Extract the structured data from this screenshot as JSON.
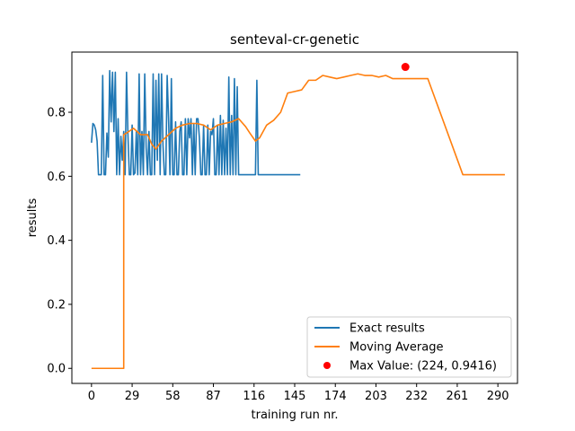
{
  "chart_data": {
    "type": "line",
    "title": "senteval-cr-genetic",
    "xlabel": "training run nr.",
    "ylabel": "results",
    "xlim": [
      -14,
      304
    ],
    "ylim": [
      -0.047,
      0.988
    ],
    "xticks": [
      0,
      29,
      58,
      87,
      116,
      145,
      174,
      203,
      232,
      261,
      290
    ],
    "yticks": [
      0.0,
      0.2,
      0.4,
      0.6,
      0.8
    ],
    "ytick_labels": [
      "0.0",
      "0.2",
      "0.4",
      "0.6",
      "0.8"
    ],
    "grid": false,
    "legend_position": "lower-right",
    "series": [
      {
        "name": "Exact results",
        "color": "#1f77b4",
        "points": [
          [
            0,
            0.705
          ],
          [
            1,
            0.765
          ],
          [
            2,
            0.76
          ],
          [
            3,
            0.745
          ],
          [
            4,
            0.71
          ],
          [
            5,
            0.605
          ],
          [
            6,
            0.605
          ],
          [
            7,
            0.605
          ],
          [
            8,
            0.915
          ],
          [
            9,
            0.605
          ],
          [
            10,
            0.605
          ],
          [
            11,
            0.735
          ],
          [
            12,
            0.66
          ],
          [
            13,
            0.93
          ],
          [
            14,
            0.77
          ],
          [
            15,
            0.925
          ],
          [
            16,
            0.74
          ],
          [
            17,
            0.925
          ],
          [
            18,
            0.605
          ],
          [
            19,
            0.78
          ],
          [
            20,
            0.605
          ],
          [
            21,
            0.725
          ],
          [
            22,
            0.65
          ],
          [
            23,
            0.74
          ],
          [
            24,
            0.605
          ],
          [
            25,
            0.925
          ],
          [
            26,
            0.73
          ],
          [
            27,
            0.605
          ],
          [
            28,
            0.605
          ],
          [
            29,
            0.76
          ],
          [
            30,
            0.605
          ],
          [
            31,
            0.61
          ],
          [
            32,
            0.74
          ],
          [
            33,
            0.605
          ],
          [
            34,
            0.92
          ],
          [
            35,
            0.605
          ],
          [
            36,
            0.74
          ],
          [
            37,
            0.605
          ],
          [
            38,
            0.92
          ],
          [
            39,
            0.69
          ],
          [
            40,
            0.605
          ],
          [
            41,
            0.74
          ],
          [
            42,
            0.605
          ],
          [
            43,
            0.605
          ],
          [
            44,
            0.92
          ],
          [
            45,
            0.605
          ],
          [
            46,
            0.9
          ],
          [
            47,
            0.65
          ],
          [
            48,
            0.92
          ],
          [
            49,
            0.605
          ],
          [
            50,
            0.92
          ],
          [
            51,
            0.7
          ],
          [
            52,
            0.605
          ],
          [
            53,
            0.605
          ],
          [
            54,
            0.915
          ],
          [
            55,
            0.78
          ],
          [
            56,
            0.605
          ],
          [
            57,
            0.905
          ],
          [
            58,
            0.605
          ],
          [
            59,
            0.605
          ],
          [
            60,
            0.77
          ],
          [
            61,
            0.605
          ],
          [
            62,
            0.605
          ],
          [
            63,
            0.74
          ],
          [
            64,
            0.77
          ],
          [
            65,
            0.605
          ],
          [
            66,
            0.605
          ],
          [
            67,
            0.78
          ],
          [
            68,
            0.605
          ],
          [
            69,
            0.78
          ],
          [
            70,
            0.72
          ],
          [
            71,
            0.78
          ],
          [
            72,
            0.605
          ],
          [
            73,
            0.765
          ],
          [
            74,
            0.605
          ],
          [
            75,
            0.78
          ],
          [
            76,
            0.78
          ],
          [
            77,
            0.72
          ],
          [
            78,
            0.605
          ],
          [
            79,
            0.605
          ],
          [
            80,
            0.76
          ],
          [
            81,
            0.605
          ],
          [
            82,
            0.605
          ],
          [
            83,
            0.76
          ],
          [
            84,
            0.605
          ],
          [
            85,
            0.74
          ],
          [
            86,
            0.73
          ],
          [
            87,
            0.78
          ],
          [
            88,
            0.605
          ],
          [
            89,
            0.605
          ],
          [
            90,
            0.76
          ],
          [
            91,
            0.605
          ],
          [
            92,
            0.79
          ],
          [
            93,
            0.605
          ],
          [
            94,
            0.775
          ],
          [
            95,
            0.605
          ],
          [
            96,
            0.75
          ],
          [
            97,
            0.605
          ],
          [
            98,
            0.91
          ],
          [
            99,
            0.605
          ],
          [
            100,
            0.79
          ],
          [
            101,
            0.605
          ],
          [
            102,
            0.905
          ],
          [
            103,
            0.605
          ],
          [
            104,
            0.88
          ],
          [
            105,
            0.605
          ],
          [
            106,
            0.605
          ],
          [
            107,
            0.605
          ],
          [
            108,
            0.605
          ],
          [
            109,
            0.605
          ],
          [
            110,
            0.605
          ],
          [
            111,
            0.605
          ],
          [
            112,
            0.605
          ],
          [
            113,
            0.605
          ],
          [
            114,
            0.605
          ],
          [
            115,
            0.605
          ],
          [
            116,
            0.605
          ],
          [
            117,
            0.605
          ],
          [
            118,
            0.9
          ],
          [
            119,
            0.605
          ],
          [
            120,
            0.605
          ],
          [
            121,
            0.605
          ],
          [
            122,
            0.605
          ],
          [
            123,
            0.605
          ],
          [
            124,
            0.605
          ],
          [
            125,
            0.605
          ],
          [
            126,
            0.605
          ],
          [
            127,
            0.605
          ],
          [
            128,
            0.605
          ],
          [
            129,
            0.605
          ],
          [
            130,
            0.605
          ],
          [
            131,
            0.605
          ],
          [
            132,
            0.605
          ],
          [
            133,
            0.605
          ],
          [
            134,
            0.605
          ],
          [
            135,
            0.605
          ],
          [
            136,
            0.605
          ],
          [
            137,
            0.605
          ],
          [
            138,
            0.605
          ],
          [
            139,
            0.605
          ],
          [
            140,
            0.605
          ],
          [
            141,
            0.605
          ],
          [
            142,
            0.605
          ],
          [
            143,
            0.605
          ],
          [
            144,
            0.605
          ],
          [
            145,
            0.605
          ],
          [
            146,
            0.605
          ],
          [
            147,
            0.605
          ],
          [
            148,
            0.605
          ],
          [
            149,
            0.605
          ]
        ]
      },
      {
        "name": "Moving Average",
        "color": "#ff7f0e",
        "points": [
          [
            0,
            0.0
          ],
          [
            23,
            0.0
          ],
          [
            23,
            0.73
          ],
          [
            25,
            0.735
          ],
          [
            30,
            0.75
          ],
          [
            35,
            0.73
          ],
          [
            40,
            0.73
          ],
          [
            43,
            0.7
          ],
          [
            46,
            0.685
          ],
          [
            50,
            0.71
          ],
          [
            55,
            0.73
          ],
          [
            60,
            0.75
          ],
          [
            65,
            0.76
          ],
          [
            70,
            0.765
          ],
          [
            75,
            0.765
          ],
          [
            80,
            0.76
          ],
          [
            85,
            0.745
          ],
          [
            90,
            0.76
          ],
          [
            95,
            0.765
          ],
          [
            100,
            0.77
          ],
          [
            105,
            0.78
          ],
          [
            110,
            0.755
          ],
          [
            113,
            0.735
          ],
          [
            117,
            0.71
          ],
          [
            120,
            0.72
          ],
          [
            125,
            0.76
          ],
          [
            130,
            0.775
          ],
          [
            135,
            0.8
          ],
          [
            140,
            0.86
          ],
          [
            145,
            0.865
          ],
          [
            150,
            0.87
          ],
          [
            155,
            0.9
          ],
          [
            160,
            0.9
          ],
          [
            165,
            0.915
          ],
          [
            170,
            0.91
          ],
          [
            175,
            0.905
          ],
          [
            180,
            0.91
          ],
          [
            185,
            0.915
          ],
          [
            190,
            0.92
          ],
          [
            195,
            0.915
          ],
          [
            200,
            0.915
          ],
          [
            205,
            0.91
          ],
          [
            210,
            0.915
          ],
          [
            215,
            0.905
          ],
          [
            220,
            0.905
          ],
          [
            225,
            0.905
          ],
          [
            230,
            0.905
          ],
          [
            235,
            0.905
          ],
          [
            240,
            0.905
          ],
          [
            265,
            0.605
          ],
          [
            295,
            0.605
          ]
        ]
      }
    ],
    "max_point": {
      "label": "Max Value: (224, 0.9416)",
      "x": 224,
      "y": 0.9416,
      "color": "#ff0000"
    }
  }
}
